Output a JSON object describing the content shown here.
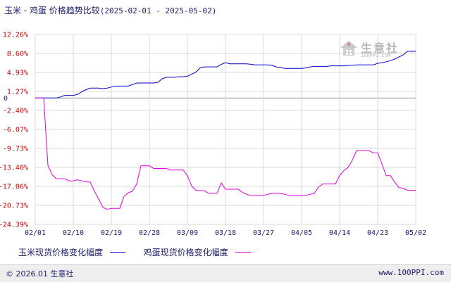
{
  "title": {
    "series_names": "玉米 - 鸡蛋 价格趋势比较",
    "date_range": "(2025-02-01 - 2025-05-02)"
  },
  "chart_data": {
    "type": "line",
    "x": [
      "02/01",
      "02/02",
      "02/03",
      "02/04",
      "02/05",
      "02/06",
      "02/07",
      "02/08",
      "02/09",
      "02/10",
      "02/11",
      "02/12",
      "02/13",
      "02/14",
      "02/15",
      "02/16",
      "02/17",
      "02/18",
      "02/19",
      "02/20",
      "02/21",
      "02/22",
      "02/23",
      "02/24",
      "02/25",
      "02/26",
      "02/27",
      "02/28",
      "03/01",
      "03/02",
      "03/03",
      "03/04",
      "03/05",
      "03/06",
      "03/07",
      "03/08",
      "03/09",
      "03/10",
      "03/11",
      "03/12",
      "03/13",
      "03/14",
      "03/15",
      "03/16",
      "03/17",
      "03/18",
      "03/19",
      "03/20",
      "03/21",
      "03/22",
      "03/23",
      "03/24",
      "03/25",
      "03/26",
      "03/27",
      "03/28",
      "03/29",
      "03/30",
      "03/31",
      "04/01",
      "04/02",
      "04/03",
      "04/04",
      "04/05",
      "04/06",
      "04/07",
      "04/08",
      "04/09",
      "04/10",
      "04/11",
      "04/12",
      "04/13",
      "04/14",
      "04/15",
      "04/16",
      "04/17",
      "04/18",
      "04/19",
      "04/20",
      "04/21",
      "04/22",
      "04/23",
      "04/24",
      "04/25",
      "04/26",
      "04/27",
      "04/28",
      "04/29",
      "04/30",
      "05/01",
      "05/02"
    ],
    "xticks": [
      "02/01",
      "02/10",
      "02/19",
      "02/28",
      "03/09",
      "03/18",
      "03/27",
      "04/05",
      "04/14",
      "04/23",
      "05/02"
    ],
    "ylim": [
      -24.39,
      12.26
    ],
    "yticks": [
      12.26,
      8.6,
      4.93,
      1.27,
      0,
      -2.4,
      -6.07,
      -9.73,
      -13.4,
      -17.06,
      -20.73,
      -24.39
    ],
    "ytick_labels": [
      "12.26%",
      "8.60%",
      "4.93%",
      "1.27%",
      "0",
      "-2.40%",
      "-6.07%",
      "-9.73%",
      "-13.40%",
      "-17.06%",
      "-20.73%",
      "-24.39%"
    ],
    "grid": true,
    "series": [
      {
        "name": "玉米现货价格变化幅度",
        "color": "#0000cc",
        "values": [
          0,
          0,
          0,
          0,
          0,
          0,
          0.2,
          0.5,
          0.5,
          0.5,
          0.7,
          1.2,
          1.6,
          1.9,
          1.9,
          1.9,
          1.8,
          1.9,
          2.1,
          2.3,
          2.3,
          2.3,
          2.3,
          2.6,
          2.9,
          2.9,
          2.9,
          2.9,
          2.9,
          3.0,
          3.7,
          4.0,
          4.0,
          4.0,
          4.1,
          4.1,
          4.2,
          4.6,
          5.0,
          5.8,
          6.0,
          6.0,
          6.0,
          6.0,
          6.5,
          6.8,
          6.6,
          6.6,
          6.6,
          6.6,
          6.6,
          6.5,
          6.4,
          6.4,
          6.4,
          6.4,
          6.3,
          6.0,
          5.9,
          5.7,
          5.7,
          5.7,
          5.7,
          5.7,
          5.8,
          6.0,
          6.1,
          6.1,
          6.1,
          6.1,
          6.2,
          6.2,
          6.2,
          6.2,
          6.3,
          6.3,
          6.4,
          6.4,
          6.4,
          6.4,
          6.4,
          6.7,
          6.8,
          7.0,
          7.2,
          7.5,
          7.9,
          8.3,
          9.0,
          9.0,
          9.0
        ]
      },
      {
        "name": "鸡蛋现货价格变化幅度",
        "color": "#e000e0",
        "values": [
          0,
          0,
          0,
          -13.0,
          -14.8,
          -15.6,
          -15.6,
          -15.6,
          -16.0,
          -16.0,
          -15.8,
          -16.0,
          -16.2,
          -16.2,
          -18.0,
          -19.5,
          -21.1,
          -21.5,
          -21.3,
          -21.3,
          -21.3,
          -19.0,
          -18.3,
          -18.0,
          -16.6,
          -13.1,
          -13.1,
          -13.1,
          -13.6,
          -13.6,
          -13.6,
          -13.6,
          -13.9,
          -13.9,
          -13.9,
          -13.9,
          -15.0,
          -17.0,
          -17.8,
          -17.9,
          -17.9,
          -18.4,
          -18.4,
          -18.4,
          -16.4,
          -17.6,
          -17.6,
          -17.6,
          -17.6,
          -18.2,
          -18.6,
          -18.8,
          -18.8,
          -18.8,
          -18.8,
          -18.6,
          -18.4,
          -18.4,
          -18.4,
          -18.6,
          -18.8,
          -18.8,
          -18.8,
          -18.8,
          -18.8,
          -18.6,
          -18.4,
          -17.2,
          -16.6,
          -16.6,
          -16.6,
          -16.6,
          -15.0,
          -14.0,
          -13.4,
          -12.0,
          -10.2,
          -10.2,
          -10.2,
          -10.2,
          -10.6,
          -10.6,
          -12.7,
          -15.0,
          -15.0,
          -16.2,
          -17.3,
          -17.4,
          -17.8,
          -17.8,
          -17.8
        ]
      }
    ]
  },
  "legend": {
    "corn_label": "玉米现货价格变化幅度",
    "egg_label": "鸡蛋现货价格变化幅度"
  },
  "watermark": {
    "name": "生意社",
    "url": "100PPI.COM"
  },
  "footer": {
    "copyright": "© 2026.01 生意社",
    "url": "www.100PPI.com"
  }
}
